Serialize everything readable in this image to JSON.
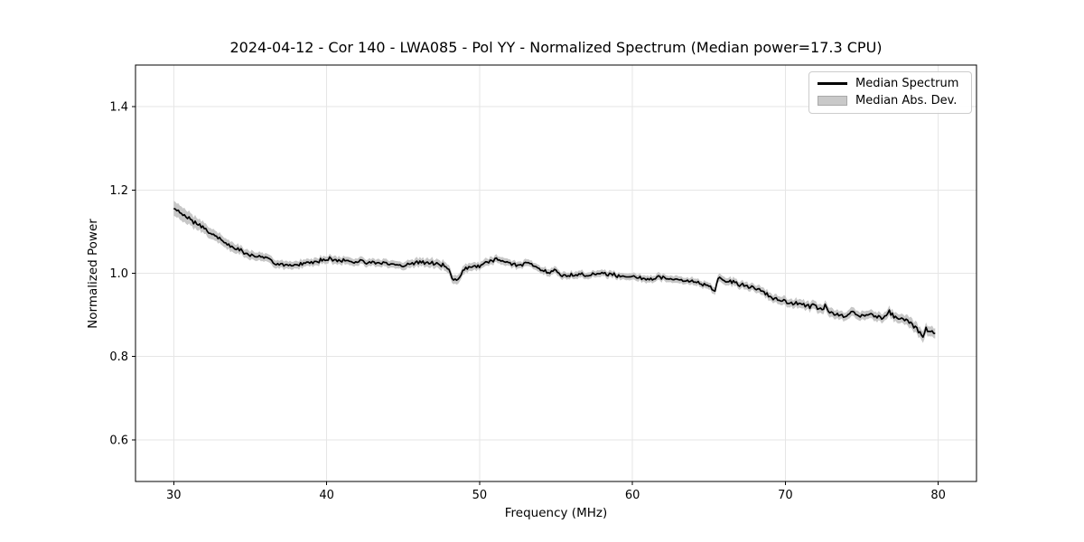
{
  "colors": {
    "line": "#000000",
    "band": "#c7c7c7",
    "grid": "#e6e6e6",
    "spine": "#000000",
    "tick": "#000000",
    "background": "#ffffff"
  },
  "legend": {
    "position": "upper right",
    "entries": [
      {
        "label": "Median Spectrum",
        "swatch": "line",
        "color": "#000000"
      },
      {
        "label": "Median Abs. Dev.",
        "swatch": "patch",
        "color": "#c9c9c9"
      }
    ]
  },
  "chart_data": {
    "type": "line",
    "title": "2024-04-12 - Cor 140 - LWA085 - Pol YY - Normalized Spectrum (Median power=17.3 CPU)",
    "xlabel": "Frequency (MHz)",
    "ylabel": "Normalized Power",
    "xlim": [
      27.5,
      82.5
    ],
    "ylim": [
      0.5,
      1.5
    ],
    "xticks": [
      30,
      40,
      50,
      60,
      70,
      80
    ],
    "yticks": [
      0.6,
      0.8,
      1.0,
      1.2,
      1.4
    ],
    "grid": true,
    "x_range_mhz": [
      30.0,
      79.8
    ],
    "sample_step_mhz": 0.1,
    "noise_amplitude": 0.006,
    "series": [
      {
        "name": "Median Spectrum",
        "style": "line",
        "points": [
          [
            30,
            1.156
          ],
          [
            30.3,
            1.149
          ],
          [
            30.6,
            1.141
          ],
          [
            31,
            1.131
          ],
          [
            31.5,
            1.118
          ],
          [
            32,
            1.107
          ],
          [
            32.5,
            1.095
          ],
          [
            33,
            1.083
          ],
          [
            33.5,
            1.071
          ],
          [
            34,
            1.062
          ],
          [
            34.5,
            1.052
          ],
          [
            35,
            1.045
          ],
          [
            35.5,
            1.04
          ],
          [
            36,
            1.037
          ],
          [
            36.3,
            1.035
          ],
          [
            36.5,
            1.026
          ],
          [
            37,
            1.021
          ],
          [
            37.5,
            1.018
          ],
          [
            38,
            1.02
          ],
          [
            38.5,
            1.023
          ],
          [
            39,
            1.028
          ],
          [
            39.5,
            1.031
          ],
          [
            40,
            1.031
          ],
          [
            40.3,
            1.035
          ],
          [
            40.7,
            1.029
          ],
          [
            41,
            1.032
          ],
          [
            41.5,
            1.029
          ],
          [
            42,
            1.026
          ],
          [
            42.3,
            1.03
          ],
          [
            42.7,
            1.025
          ],
          [
            43,
            1.024
          ],
          [
            43.4,
            1.021
          ],
          [
            43.8,
            1.025
          ],
          [
            44.1,
            1.026
          ],
          [
            44.4,
            1.021
          ],
          [
            44.8,
            1.018
          ],
          [
            45.1,
            1.016
          ],
          [
            45.4,
            1.02
          ],
          [
            45.8,
            1.023
          ],
          [
            46.1,
            1.025
          ],
          [
            46.5,
            1.023
          ],
          [
            47,
            1.025
          ],
          [
            47.3,
            1.022
          ],
          [
            47.7,
            1.018
          ],
          [
            48,
            1.008
          ],
          [
            48.2,
            0.99
          ],
          [
            48.4,
            0.983
          ],
          [
            48.6,
            0.986
          ],
          [
            48.9,
            1.003
          ],
          [
            49.2,
            1.013
          ],
          [
            49.6,
            1.017
          ],
          [
            50,
            1.019
          ],
          [
            50.4,
            1.025
          ],
          [
            50.8,
            1.031
          ],
          [
            51.1,
            1.033
          ],
          [
            51.4,
            1.029
          ],
          [
            51.8,
            1.025
          ],
          [
            52.2,
            1.022
          ],
          [
            52.6,
            1.021
          ],
          [
            53,
            1.025
          ],
          [
            53.4,
            1.02
          ],
          [
            53.8,
            1.013
          ],
          [
            54.2,
            1.007
          ],
          [
            54.6,
            1.003
          ],
          [
            54.9,
            1.007
          ],
          [
            55.3,
            0.999
          ],
          [
            55.7,
            0.995
          ],
          [
            56.1,
            0.994
          ],
          [
            56.5,
            0.997
          ],
          [
            57,
            0.995
          ],
          [
            57.5,
            0.998
          ],
          [
            57.9,
            1.001
          ],
          [
            58.3,
            0.999
          ],
          [
            58.7,
            0.997
          ],
          [
            59.1,
            0.994
          ],
          [
            59.5,
            0.991
          ],
          [
            59.9,
            0.994
          ],
          [
            60.3,
            0.99
          ],
          [
            60.7,
            0.988
          ],
          [
            61.1,
            0.986
          ],
          [
            61.5,
            0.989
          ],
          [
            61.9,
            0.99
          ],
          [
            62.3,
            0.987
          ],
          [
            62.7,
            0.986
          ],
          [
            63.1,
            0.985
          ],
          [
            63.5,
            0.982
          ],
          [
            64,
            0.979
          ],
          [
            64.4,
            0.977
          ],
          [
            64.8,
            0.97
          ],
          [
            65.1,
            0.965
          ],
          [
            65.4,
            0.961
          ],
          [
            65.6,
            0.989
          ],
          [
            66,
            0.985
          ],
          [
            66.4,
            0.981
          ],
          [
            66.8,
            0.976
          ],
          [
            67.2,
            0.972
          ],
          [
            67.6,
            0.968
          ],
          [
            68,
            0.963
          ],
          [
            68.4,
            0.957
          ],
          [
            68.8,
            0.949
          ],
          [
            69.2,
            0.94
          ],
          [
            69.6,
            0.935
          ],
          [
            70,
            0.934
          ],
          [
            70.4,
            0.93
          ],
          [
            70.8,
            0.927
          ],
          [
            71.2,
            0.923
          ],
          [
            71.6,
            0.92
          ],
          [
            71.8,
            0.928
          ],
          [
            72.1,
            0.916
          ],
          [
            72.4,
            0.911
          ],
          [
            72.6,
            0.926
          ],
          [
            72.8,
            0.908
          ],
          [
            73.2,
            0.902
          ],
          [
            73.6,
            0.898
          ],
          [
            74,
            0.899
          ],
          [
            74.4,
            0.904
          ],
          [
            74.8,
            0.898
          ],
          [
            75.2,
            0.899
          ],
          [
            75.6,
            0.901
          ],
          [
            76,
            0.898
          ],
          [
            76.4,
            0.893
          ],
          [
            76.8,
            0.908
          ],
          [
            77.1,
            0.895
          ],
          [
            77.5,
            0.891
          ],
          [
            78,
            0.886
          ],
          [
            78.4,
            0.874
          ],
          [
            78.7,
            0.862
          ],
          [
            79,
            0.847
          ],
          [
            79.2,
            0.868
          ],
          [
            79.4,
            0.861
          ],
          [
            79.6,
            0.858
          ],
          [
            79.8,
            0.854
          ]
        ]
      },
      {
        "name": "Median Abs. Dev.",
        "style": "band",
        "halfwidth_points": [
          [
            30,
            0.018
          ],
          [
            31,
            0.015
          ],
          [
            32,
            0.013
          ],
          [
            33,
            0.012
          ],
          [
            34,
            0.011
          ],
          [
            36,
            0.0095
          ],
          [
            40,
            0.009
          ],
          [
            45,
            0.009
          ],
          [
            48.4,
            0.011
          ],
          [
            50,
            0.009
          ],
          [
            55,
            0.008
          ],
          [
            60,
            0.008
          ],
          [
            65,
            0.0085
          ],
          [
            68,
            0.009
          ],
          [
            70,
            0.01
          ],
          [
            72.6,
            0.011
          ],
          [
            75,
            0.01
          ],
          [
            77,
            0.011
          ],
          [
            79,
            0.013
          ],
          [
            79.8,
            0.012
          ]
        ]
      }
    ]
  }
}
